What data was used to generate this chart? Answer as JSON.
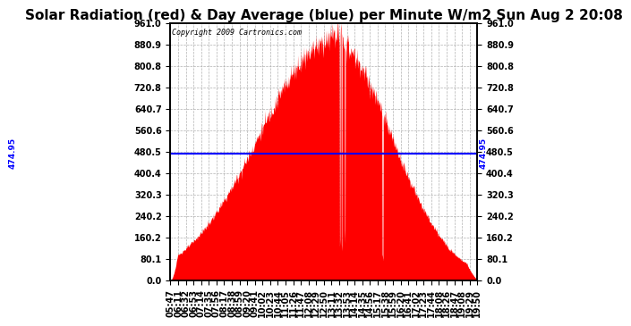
{
  "title": "Solar Radiation (red) & Day Average (blue) per Minute W/m2 Sun Aug 2 20:08",
  "copyright_text": "Copyright 2009 Cartronics.com",
  "y_min": 0.0,
  "y_max": 961.0,
  "y_ticks": [
    0.0,
    80.1,
    160.2,
    240.2,
    320.3,
    400.4,
    480.5,
    560.6,
    640.7,
    720.8,
    800.8,
    880.9,
    961.0
  ],
  "y_tick_labels": [
    "0.0",
    "80.1",
    "160.2",
    "240.2",
    "320.3",
    "400.4",
    "480.5",
    "560.6",
    "640.7",
    "720.8",
    "800.8",
    "880.9",
    "961.0"
  ],
  "day_average": 474.95,
  "avg_label": "474.95",
  "x_tick_labels": [
    "05:47",
    "06:11",
    "06:32",
    "06:53",
    "07:14",
    "07:35",
    "07:56",
    "08:17",
    "08:38",
    "08:59",
    "09:20",
    "09:41",
    "10:02",
    "10:23",
    "10:44",
    "11:05",
    "11:26",
    "11:47",
    "12:08",
    "12:29",
    "12:50",
    "13:11",
    "13:32",
    "13:53",
    "14:14",
    "14:35",
    "14:56",
    "15:17",
    "15:38",
    "15:59",
    "16:20",
    "16:41",
    "17:02",
    "17:23",
    "17:44",
    "18:08",
    "18:26",
    "18:47",
    "19:08",
    "19:29",
    "19:50"
  ],
  "fill_color": "#FF0000",
  "line_color": "#0000FF",
  "background_color": "#FFFFFF",
  "grid_color": "#AAAAAA",
  "title_fontsize": 11,
  "tick_fontsize": 7,
  "label_color": "#000000"
}
